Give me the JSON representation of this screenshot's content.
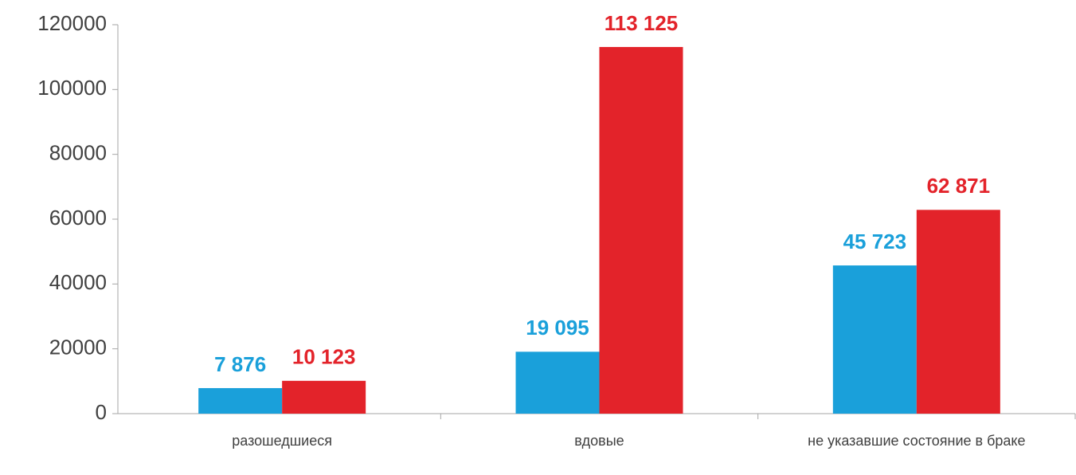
{
  "chart_data": {
    "type": "bar",
    "categories": [
      "разошедшиеся",
      "вдовые",
      "не указавшие состояние в браке"
    ],
    "series": [
      {
        "color": "#1aa0da",
        "values": [
          7876,
          19095,
          45723
        ],
        "value_labels": [
          "7 876",
          "19 095",
          "45 723"
        ]
      },
      {
        "color": "#e3232a",
        "values": [
          10123,
          113125,
          62871
        ],
        "value_labels": [
          "10 123",
          "113 125",
          "62 871"
        ]
      }
    ],
    "ylim": [
      0,
      120000
    ],
    "yticks": [
      0,
      20000,
      40000,
      60000,
      80000,
      100000,
      120000
    ],
    "grid": false
  }
}
